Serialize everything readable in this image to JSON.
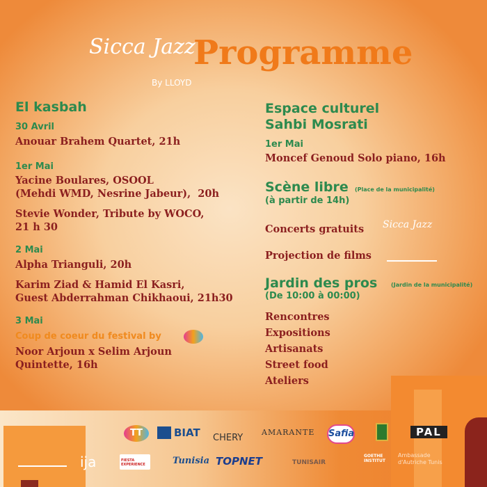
{
  "header": {
    "logo_text": "Sicca Jazz",
    "logo_sub": "By LLOYD",
    "title": "Programme"
  },
  "left": {
    "venue": "El kasbah",
    "days": [
      {
        "date": "30 Avril",
        "items": [
          "Anouar Brahem Quartet,  21h"
        ]
      },
      {
        "date": "1er Mai",
        "items": [
          "Yacine Boulares, OSOOL\n(Mehdi WMD, Nesrine Jabeur),  20h",
          "Stevie Wonder, Tribute by WOCO,\n21 h 30"
        ]
      },
      {
        "date": "2 Mai",
        "items": [
          "Alpha Trianguli, 20h",
          "Karim Ziad & Hamid El Kasri,\nGuest Abderrahman Chikhaoui, 21h30"
        ]
      },
      {
        "date": "3 Mai",
        "highlight": "Coup de coeur du festival by",
        "items": [
          "Noor Arjoun x Selim Arjoun\nQuintette, 16h"
        ]
      }
    ]
  },
  "right": {
    "venue_line1": "Espace culturel",
    "venue_line2": "Sahbi Mosrati",
    "date": "1er Mai",
    "item": "Moncef Genoud Solo piano, 16h",
    "scene_title": "Scène libre",
    "scene_place": "(Place de la municipalité)",
    "scene_time": "(à partir de 14h)",
    "concerts": "Concerts gratuits",
    "projection": "Projection de films",
    "jardin_title": "Jardin des pros",
    "jardin_place": "(Jardin de la municipalité)",
    "jardin_time": "(De 10:00 à 00:00)",
    "activities": [
      "Rencontres",
      "Expositions",
      "Artisanats",
      "Street food",
      "Ateliers"
    ]
  },
  "sponsors": {
    "row1": [
      "TT",
      "BIAT",
      "CHERY",
      "AMARANTE",
      "Safia",
      "PAL"
    ],
    "row2": [
      "IJA",
      "FIESTA EXPERIENCE",
      "Tunisia",
      "TOPNET",
      "TUNISAIR",
      "GOETHE INSTITUT",
      "Ambassade d'Autriche Tunis"
    ]
  },
  "colors": {
    "green": "#2d8a4e",
    "red": "#8b1f1f",
    "orange": "#f08a1e"
  }
}
